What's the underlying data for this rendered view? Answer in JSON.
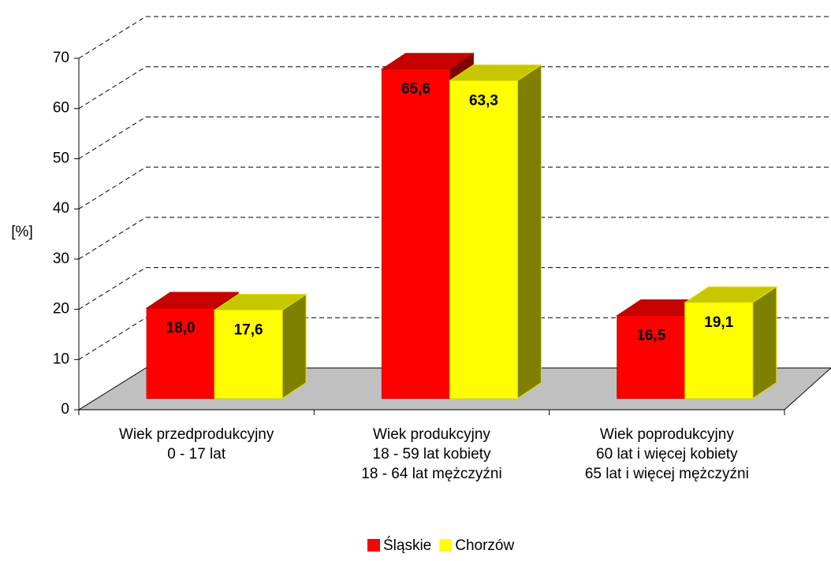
{
  "chart_data": {
    "type": "bar3d",
    "y_label": "[%]",
    "categories": [
      [
        "Wiek przedprodukcyjny",
        "0 - 17 lat"
      ],
      [
        "Wiek produkcyjny",
        "18 - 59 lat kobiety",
        "18 - 64 lat mężczyźni"
      ],
      [
        "Wiek poprodukcyjny",
        "60 lat i więcej kobiety",
        "65 lat i więcej mężczyźni"
      ]
    ],
    "series": [
      {
        "name": "Śląskie",
        "color": "#ff0000",
        "values": [
          18.0,
          65.6,
          16.5
        ],
        "value_labels": [
          "18,0",
          "65,6",
          "16,5"
        ]
      },
      {
        "name": "Chorzów",
        "color": "#ffff00",
        "values": [
          17.6,
          63.3,
          19.1
        ],
        "value_labels": [
          "17,6",
          "63,3",
          "19,1"
        ]
      }
    ],
    "ylim": [
      0,
      70
    ],
    "yticks": [
      0,
      10,
      20,
      30,
      40,
      50,
      60,
      70
    ],
    "grid": true,
    "legend": "bottom"
  }
}
